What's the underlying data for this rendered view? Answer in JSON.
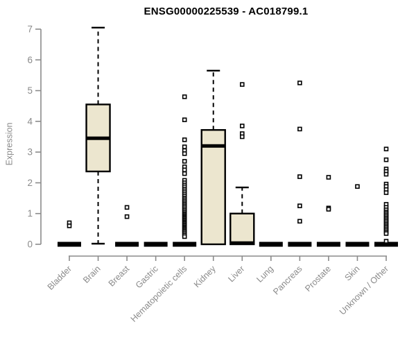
{
  "colors": {
    "box_fill": "#ECE6CF",
    "box_stroke": "#000000",
    "median": "#000000",
    "outlier_fill": "#FFFFFF",
    "axis": "#8a8a8a",
    "tick_text": "#8a8a8a",
    "title_text": "#000000",
    "background": "#FFFFFF"
  },
  "chart_data": {
    "type": "boxplot",
    "title": "ENSG00000225539 - AC018799.1",
    "xlabel": "",
    "ylabel": "Expression",
    "ylim": [
      0,
      7
    ],
    "yticks": [
      0,
      1,
      2,
      3,
      4,
      5,
      6,
      7
    ],
    "grid": false,
    "legend": false,
    "categories": [
      "Bladder",
      "Brain",
      "Breast",
      "Gastric",
      "Hematopoietic cells",
      "Kidney",
      "Liver",
      "Lung",
      "Pancreas",
      "Prostate",
      "Skin",
      "Unknown / Other"
    ],
    "boxes": [
      {
        "category": "Bladder",
        "q1": 0,
        "median": 0,
        "q3": 0,
        "whisker_low": 0,
        "whisker_high": 0,
        "outliers": [
          0.7,
          0.6
        ]
      },
      {
        "category": "Brain",
        "q1": 2.37,
        "median": 3.45,
        "q3": 4.55,
        "whisker_low": 0.02,
        "whisker_high": 7.05,
        "outliers": []
      },
      {
        "category": "Breast",
        "q1": 0,
        "median": 0,
        "q3": 0,
        "whisker_low": 0,
        "whisker_high": 0,
        "outliers": [
          1.2,
          0.9
        ]
      },
      {
        "category": "Gastric",
        "q1": 0,
        "median": 0,
        "q3": 0,
        "whisker_low": 0,
        "whisker_high": 0,
        "outliers": []
      },
      {
        "category": "Hematopoietic cells",
        "q1": 0,
        "median": 0,
        "q3": 0,
        "whisker_low": 0,
        "whisker_high": 0,
        "outliers": [
          4.8,
          4.05,
          3.4,
          3.17,
          3.05,
          2.95,
          2.7,
          2.52,
          2.42,
          2.3,
          2.08,
          2.0,
          1.93,
          1.87,
          1.8,
          1.74,
          1.68,
          1.62,
          1.56,
          1.5,
          1.45,
          1.4,
          1.35,
          1.3,
          1.25,
          1.2,
          1.15,
          1.1,
          1.05,
          1.0,
          0.96,
          0.92,
          0.88,
          0.84,
          0.8,
          0.76,
          0.72,
          0.68,
          0.64,
          0.6,
          0.56,
          0.52,
          0.48,
          0.44,
          0.4,
          0.35,
          0.3,
          0.25
        ]
      },
      {
        "category": "Kidney",
        "q1": 0,
        "median": 3.2,
        "q3": 3.72,
        "whisker_low": 0,
        "whisker_high": 5.65,
        "outliers": []
      },
      {
        "category": "Liver",
        "q1": 0,
        "median": 0.04,
        "q3": 1.0,
        "whisker_low": 0,
        "whisker_high": 1.85,
        "outliers": [
          5.2,
          3.85,
          3.6,
          3.5
        ]
      },
      {
        "category": "Lung",
        "q1": 0,
        "median": 0,
        "q3": 0,
        "whisker_low": 0,
        "whisker_high": 0,
        "outliers": []
      },
      {
        "category": "Pancreas",
        "q1": 0,
        "median": 0,
        "q3": 0,
        "whisker_low": 0,
        "whisker_high": 0,
        "outliers": [
          5.25,
          3.75,
          2.2,
          1.25,
          0.75
        ]
      },
      {
        "category": "Prostate",
        "q1": 0,
        "median": 0,
        "q3": 0,
        "whisker_low": 0,
        "whisker_high": 0,
        "outliers": [
          2.18,
          1.18,
          1.14
        ]
      },
      {
        "category": "Skin",
        "q1": 0,
        "median": 0,
        "q3": 0,
        "whisker_low": 0,
        "whisker_high": 0,
        "outliers": [
          1.88
        ]
      },
      {
        "category": "Unknown / Other",
        "q1": 0,
        "median": 0,
        "q3": 0,
        "whisker_low": 0,
        "whisker_high": 0,
        "outliers": [
          3.1,
          2.75,
          2.45,
          2.37,
          2.28,
          1.96,
          1.88,
          1.78,
          1.68,
          1.3,
          1.2,
          1.12,
          1.05,
          1.0,
          0.95,
          0.9,
          0.85,
          0.8,
          0.75,
          0.7,
          0.65,
          0.6,
          0.55,
          0.5,
          0.45,
          0.4,
          0.35,
          0.1
        ]
      }
    ]
  }
}
